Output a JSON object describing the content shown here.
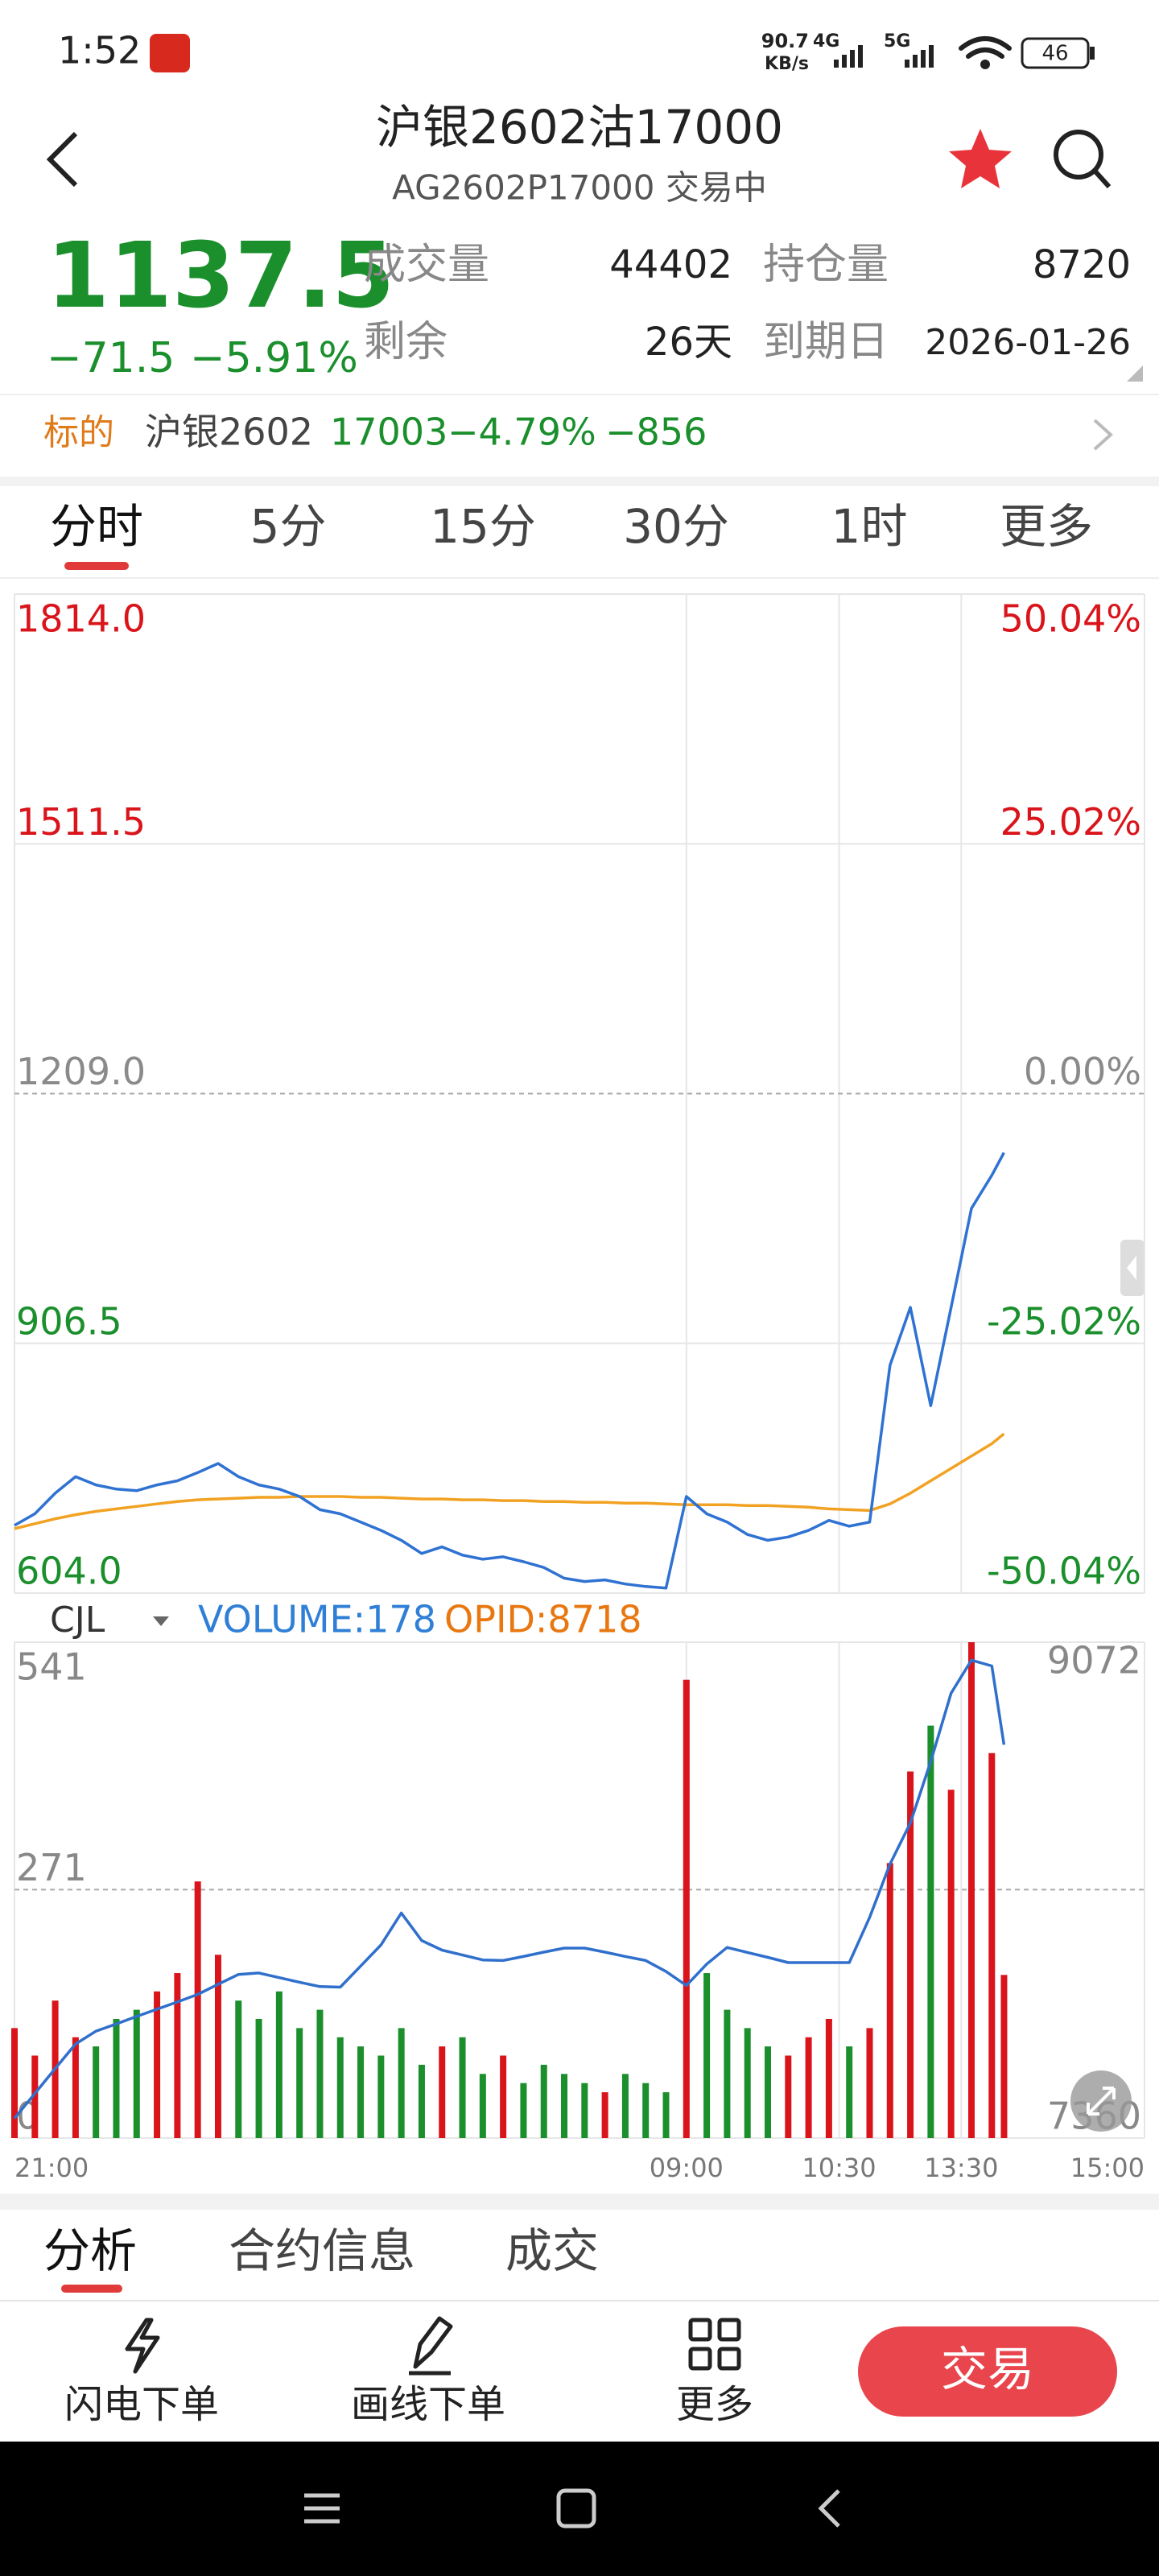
{
  "status_bar": {
    "time": "1:52",
    "net_speed": "90.7",
    "net_unit": "KB/s",
    "sim1": "4G",
    "sim2": "5G",
    "battery": "46"
  },
  "header": {
    "title": "沪银2602沽17000",
    "subtitle": "AG2602P17000 交易中"
  },
  "quote": {
    "price": "1137.5",
    "change": "−71.5",
    "change_pct": "−5.91%",
    "volume_label": "成交量",
    "volume": "44402",
    "oi_label": "持仓量",
    "oi": "8720",
    "remaining_label": "剩余",
    "remaining": "26天",
    "expiry_label": "到期日",
    "expiry": "2026-01-26"
  },
  "underlying": {
    "label": "标的",
    "name": "沪银2602",
    "price": "17003",
    "change_pct": "−4.79%",
    "change": "−856"
  },
  "period_tabs": [
    "分时",
    "5分",
    "15分",
    "30分",
    "1时",
    "更多"
  ],
  "chart_data": [
    {
      "type": "line",
      "x": [
        0,
        10,
        20,
        30,
        40,
        50,
        60,
        70,
        80,
        90,
        100,
        110,
        120,
        130,
        140,
        150,
        160,
        170,
        180,
        190,
        200,
        210,
        220,
        230,
        240,
        250,
        260,
        270,
        280,
        290,
        300,
        310,
        320,
        330,
        340,
        350,
        360,
        370,
        380,
        390,
        400,
        410,
        420,
        430,
        440,
        450,
        460,
        470,
        480,
        486
      ],
      "xlim": [
        0,
        555
      ],
      "ylim": [
        604,
        1814
      ],
      "yticks": [
        {
          "value": 604,
          "label": "604.0"
        },
        {
          "value": 906.5,
          "label": "906.5"
        },
        {
          "value": 1209,
          "label": "1209.0"
        },
        {
          "value": 1511.5,
          "label": "1511.5"
        },
        {
          "value": 1814,
          "label": "1814.0"
        }
      ],
      "y2lim": [
        -50.04,
        50.04
      ],
      "y2ticks": [
        {
          "value": -50.04,
          "label": "-50.04%"
        },
        {
          "value": -25.02,
          "label": "-25.02%"
        },
        {
          "value": 0,
          "label": "0.00%"
        },
        {
          "value": 25.02,
          "label": "25.02%"
        },
        {
          "value": 50.04,
          "label": "50.04%"
        }
      ],
      "series": [
        {
          "color": "#2f72d2",
          "values": [
            686,
            700,
            725,
            745,
            735,
            730,
            728,
            735,
            740,
            750,
            761,
            745,
            735,
            730,
            721,
            705,
            700,
            690,
            680,
            668,
            652,
            660,
            650,
            645,
            648,
            642,
            635,
            622,
            618,
            620,
            615,
            612,
            610,
            721,
            700,
            690,
            675,
            668,
            672,
            680,
            692,
            685,
            690,
            880,
            950,
            831,
            950,
            1070,
            1110,
            1137.5
          ]
        },
        {
          "color": "#f2a223",
          "values": [
            682,
            688,
            694,
            699,
            703,
            706,
            709,
            712,
            715,
            717,
            718,
            719,
            720,
            720,
            721,
            721,
            721,
            720,
            720,
            719,
            718,
            718,
            717,
            717,
            716,
            716,
            715,
            715,
            714,
            714,
            713,
            713,
            712,
            711,
            711,
            711,
            710,
            710,
            709,
            708,
            706,
            705,
            704,
            712,
            725,
            740,
            755,
            770,
            785,
            797
          ]
        }
      ],
      "up_color": "#d9141b",
      "down_color": "#1a8f2c",
      "flat_color": "#8a8a8a"
    },
    {
      "type": "bar",
      "indicator": "CJL",
      "x": [
        0,
        10,
        20,
        30,
        40,
        50,
        60,
        70,
        80,
        90,
        100,
        110,
        120,
        130,
        140,
        150,
        160,
        170,
        180,
        190,
        200,
        210,
        220,
        230,
        240,
        250,
        260,
        270,
        280,
        290,
        300,
        310,
        320,
        330,
        340,
        350,
        360,
        370,
        380,
        390,
        400,
        410,
        420,
        430,
        440,
        450,
        460,
        470,
        480,
        486
      ],
      "xlim": [
        0,
        555
      ],
      "xticks": [
        {
          "value": 0,
          "label": "21:00"
        },
        {
          "value": 330,
          "label": "09:00"
        },
        {
          "value": 405,
          "label": "10:30"
        },
        {
          "value": 465,
          "label": "13:30"
        },
        {
          "value": 555,
          "label": "15:00"
        }
      ],
      "ylim": [
        0,
        541
      ],
      "yticks": [
        0,
        271,
        541
      ],
      "y2lim": [
        7360,
        9072
      ],
      "y2ticks": [
        7360,
        9072
      ],
      "series": [
        {
          "name": "VOLUME:178",
          "color": "#2f7fd6",
          "values": [
            120,
            90,
            150,
            110,
            100,
            130,
            140,
            160,
            180,
            280,
            200,
            150,
            130,
            160,
            120,
            140,
            110,
            100,
            90,
            120,
            80,
            100,
            110,
            70,
            90,
            60,
            80,
            70,
            60,
            50,
            70,
            60,
            50,
            500,
            180,
            140,
            120,
            100,
            90,
            110,
            130,
            100,
            120,
            300,
            400,
            450,
            380,
            541,
            420,
            178
          ]
        },
        {
          "name": "OPID:8718",
          "color": "#e8770f",
          "line_color": "#3070cc",
          "axis": "y2",
          "values": [
            7428,
            7514,
            7600,
            7685,
            7729,
            7754,
            7780,
            7805,
            7830,
            7856,
            7891,
            7925,
            7930,
            7914,
            7898,
            7883,
            7881,
            7954,
            8027,
            8137,
            8042,
            8009,
            7992,
            7975,
            7973,
            7987,
            8002,
            8016,
            8016,
            8002,
            7987,
            7973,
            7935,
            7887,
            7961,
            8018,
            8001,
            7984,
            7966,
            7966,
            7966,
            7966,
            8122,
            8306,
            8448,
            8660,
            8896,
            9010,
            8990,
            8718
          ]
        }
      ],
      "up_color": "#d9141b",
      "down_color": "#1a8f2c"
    }
  ],
  "bottom_tabs": [
    "分析",
    "合约信息",
    "成交"
  ],
  "toolbar": [
    "闪电下单",
    "画线下单",
    "更多"
  ],
  "trade_button": "交易"
}
